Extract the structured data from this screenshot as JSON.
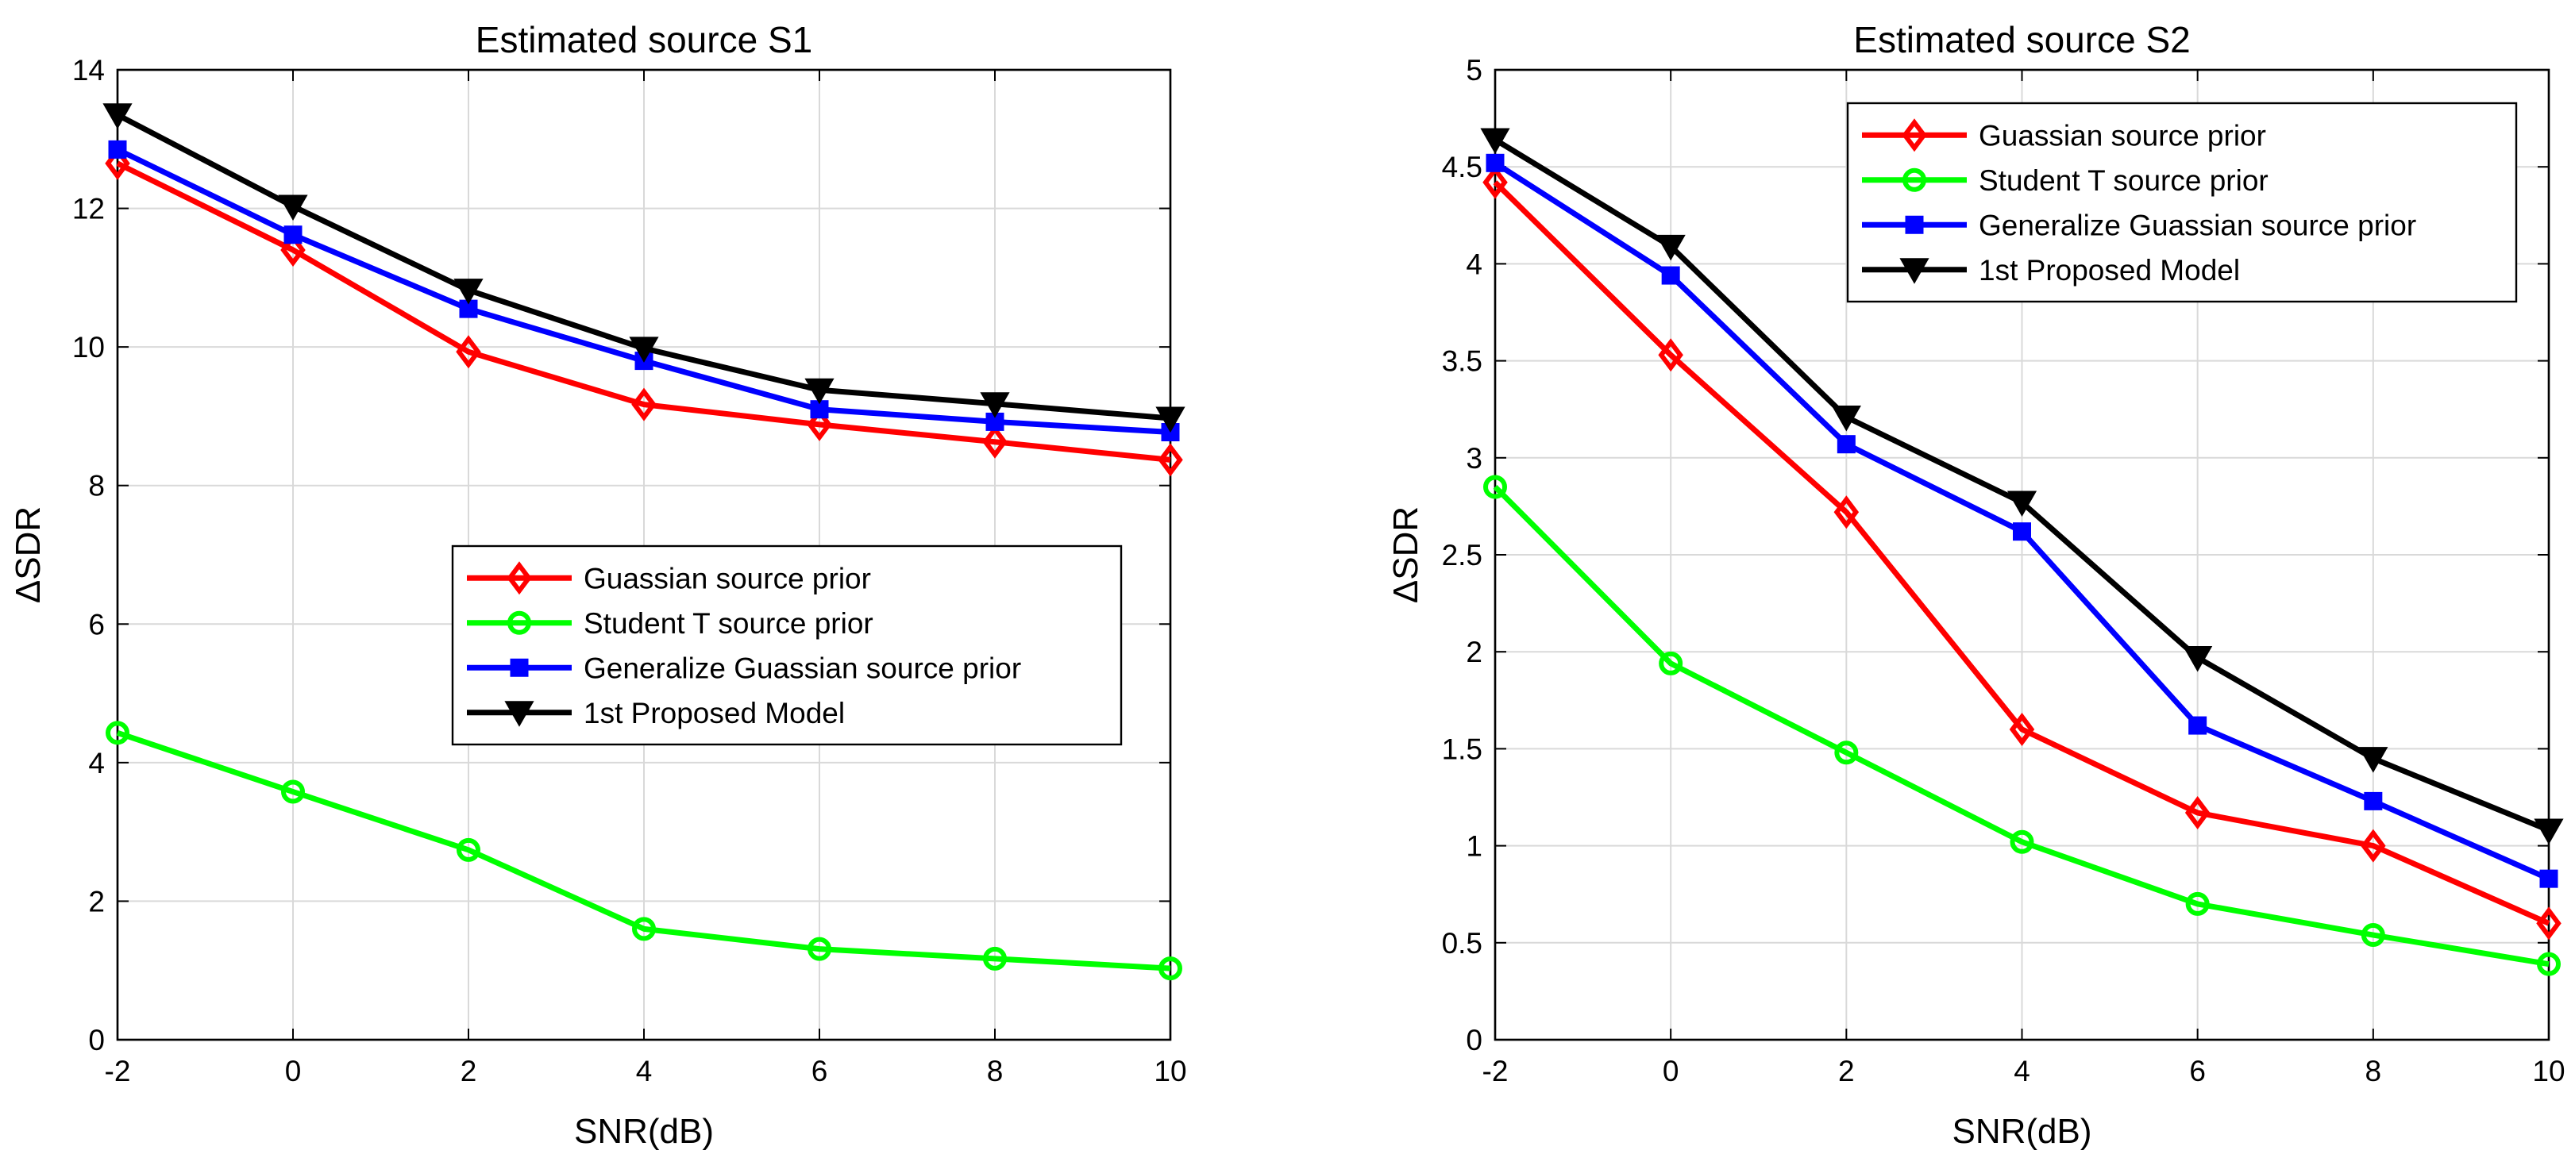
{
  "chart_data": [
    {
      "type": "line",
      "title": "Estimated source S1",
      "xlabel": "SNR(dB)",
      "ylabel": "ΔSDR",
      "xlim": [
        -2,
        10
      ],
      "ylim": [
        0,
        14
      ],
      "xticks": [
        "-2",
        "0",
        "2",
        "4",
        "6",
        "8",
        "10"
      ],
      "yticks": [
        "0",
        "2",
        "4",
        "6",
        "8",
        "10",
        "12",
        "14"
      ],
      "grid": true,
      "legend_position": "center-right",
      "x": [
        -2,
        0,
        2,
        4,
        6,
        8,
        10
      ],
      "series": [
        {
          "name": "Guassian source prior",
          "color": "#ff0000",
          "marker": "diamond",
          "values": [
            12.65,
            11.4,
            9.93,
            9.17,
            8.88,
            8.63,
            8.37
          ]
        },
        {
          "name": "Student T source prior",
          "color": "#00ff00",
          "marker": "circle",
          "values": [
            4.43,
            3.58,
            2.74,
            1.6,
            1.31,
            1.17,
            1.03
          ]
        },
        {
          "name": "Generalize Guassian source prior",
          "color": "#0000ff",
          "marker": "square",
          "values": [
            12.85,
            11.62,
            10.55,
            9.8,
            9.1,
            8.92,
            8.77
          ]
        },
        {
          "name": "1st Proposed Model",
          "color": "#000000",
          "marker": "triangle-down",
          "values": [
            13.35,
            12.03,
            10.82,
            9.98,
            9.38,
            9.18,
            8.97
          ]
        }
      ]
    },
    {
      "type": "line",
      "title": "Estimated source S2",
      "xlabel": "SNR(dB)",
      "ylabel": "ΔSDR",
      "xlim": [
        -2,
        10
      ],
      "ylim": [
        0,
        5
      ],
      "xticks": [
        "-2",
        "0",
        "2",
        "4",
        "6",
        "8",
        "10"
      ],
      "yticks": [
        "0",
        "0.5",
        "1",
        "1.5",
        "2",
        "2.5",
        "3",
        "3.5",
        "4",
        "4.5",
        "5"
      ],
      "grid": true,
      "legend_position": "top-right",
      "x": [
        -2,
        0,
        2,
        4,
        6,
        8,
        10
      ],
      "series": [
        {
          "name": "Guassian source prior",
          "color": "#ff0000",
          "marker": "diamond",
          "values": [
            4.42,
            3.53,
            2.72,
            1.6,
            1.17,
            1.0,
            0.6
          ]
        },
        {
          "name": "Student T source prior",
          "color": "#00ff00",
          "marker": "circle",
          "values": [
            2.85,
            1.94,
            1.48,
            1.02,
            0.7,
            0.54,
            0.39
          ]
        },
        {
          "name": "Generalize Guassian source prior",
          "color": "#0000ff",
          "marker": "square",
          "values": [
            4.52,
            3.94,
            3.07,
            2.62,
            1.62,
            1.23,
            0.83
          ]
        },
        {
          "name": "1st Proposed Model",
          "color": "#000000",
          "marker": "triangle-down",
          "values": [
            4.64,
            4.09,
            3.21,
            2.77,
            1.97,
            1.45,
            1.08
          ]
        }
      ]
    }
  ]
}
